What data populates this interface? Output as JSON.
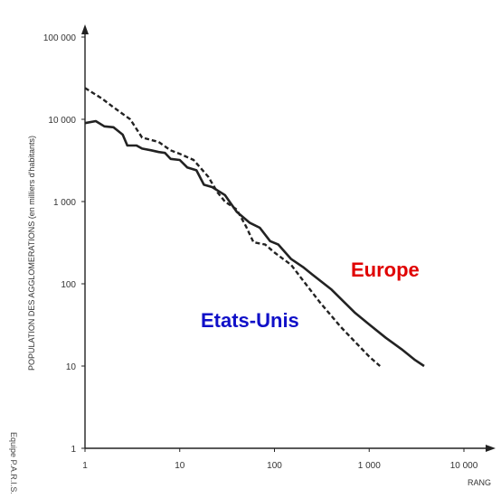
{
  "chart_data": {
    "type": "line",
    "xscale": "log",
    "yscale": "log",
    "xlim": [
      1,
      10000
    ],
    "ylim": [
      1,
      100000
    ],
    "xlabel": "RANG",
    "ylabel": "POPULATION DES AGGLOMERATIONS (en milliers d'habitants)",
    "credit": "Equipe P.A.R.I.S.",
    "x_ticks": [
      {
        "value": 1,
        "label": "1"
      },
      {
        "value": 10,
        "label": "10"
      },
      {
        "value": 100,
        "label": "100"
      },
      {
        "value": 1000,
        "label": "1 000"
      },
      {
        "value": 10000,
        "label": "10 000"
      }
    ],
    "y_ticks": [
      {
        "value": 1,
        "label": "1"
      },
      {
        "value": 10,
        "label": "10"
      },
      {
        "value": 100,
        "label": "100"
      },
      {
        "value": 1000,
        "label": "1 000"
      },
      {
        "value": 10000,
        "label": "10 000"
      },
      {
        "value": 100000,
        "label": "100 000"
      }
    ],
    "series": [
      {
        "name": "Europe",
        "color": "#e00000",
        "line_style": "solid",
        "points": [
          [
            1,
            9000
          ],
          [
            1.3,
            9500
          ],
          [
            1.6,
            8200
          ],
          [
            2,
            8000
          ],
          [
            2.5,
            6500
          ],
          [
            2.8,
            4800
          ],
          [
            3.5,
            4800
          ],
          [
            4,
            4400
          ],
          [
            5,
            4200
          ],
          [
            6,
            4000
          ],
          [
            7,
            3900
          ],
          [
            8,
            3300
          ],
          [
            10,
            3200
          ],
          [
            12,
            2600
          ],
          [
            15,
            2400
          ],
          [
            18,
            1600
          ],
          [
            22,
            1500
          ],
          [
            30,
            1200
          ],
          [
            40,
            750
          ],
          [
            55,
            550
          ],
          [
            70,
            480
          ],
          [
            90,
            330
          ],
          [
            110,
            300
          ],
          [
            150,
            200
          ],
          [
            200,
            160
          ],
          [
            250,
            130
          ],
          [
            400,
            85
          ],
          [
            700,
            45
          ],
          [
            1000,
            32
          ],
          [
            1500,
            22
          ],
          [
            2200,
            16
          ],
          [
            3000,
            12
          ],
          [
            3800,
            10
          ]
        ]
      },
      {
        "name": "Etats-Unis",
        "color": "#1010c8",
        "line_style": "dashed",
        "points": [
          [
            1,
            24000
          ],
          [
            1.5,
            18000
          ],
          [
            2,
            14000
          ],
          [
            3,
            10000
          ],
          [
            4,
            6000
          ],
          [
            6,
            5300
          ],
          [
            8,
            4200
          ],
          [
            10,
            3800
          ],
          [
            14,
            3200
          ],
          [
            20,
            2000
          ],
          [
            25,
            1300
          ],
          [
            30,
            1000
          ],
          [
            40,
            800
          ],
          [
            50,
            500
          ],
          [
            60,
            320
          ],
          [
            80,
            300
          ],
          [
            100,
            240
          ],
          [
            150,
            170
          ],
          [
            200,
            110
          ],
          [
            300,
            60
          ],
          [
            500,
            30
          ],
          [
            700,
            20
          ],
          [
            1000,
            13
          ],
          [
            1300,
            10
          ]
        ]
      }
    ],
    "legend": "inline labels near lines"
  }
}
